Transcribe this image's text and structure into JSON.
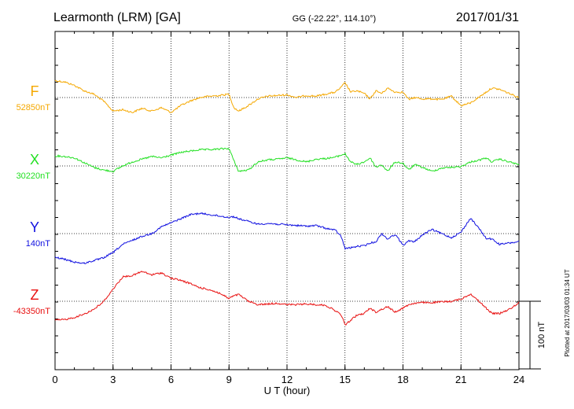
{
  "header": {
    "station": "Learmonth (LRM)  [GA]",
    "coords": "GG (-22.22°, 114.10°)",
    "date": "2017/01/31"
  },
  "footer_note": "Plotted at 2017/03/03 01:34  UT",
  "colors": {
    "F": "#f5a800",
    "X": "#22e022",
    "Y": "#1010e0",
    "Z": "#e81010"
  },
  "chart_data": {
    "type": "line",
    "title": "Learmonth (LRM)  [GA]",
    "xlabel": "U T (hour)",
    "xlim": [
      0,
      24
    ],
    "xticks": [
      "0",
      "3",
      "6",
      "9",
      "12",
      "15",
      "18",
      "21",
      "24"
    ],
    "grid": true,
    "scale_bar": {
      "label": "100 nT",
      "value": 100
    },
    "series": [
      {
        "name": "F",
        "baseline_label": "52850nT",
        "baseline_nT": 52850,
        "x": [
          0,
          0.5,
          1,
          1.5,
          2,
          2.5,
          3,
          3.5,
          4,
          4.5,
          5,
          5.5,
          6,
          6.5,
          7,
          7.5,
          8,
          8.5,
          9,
          9.25,
          9.5,
          10,
          10.5,
          11,
          11.5,
          12,
          12.5,
          13,
          13.5,
          14,
          14.5,
          14.8,
          15,
          15.3,
          15.6,
          16,
          16.3,
          16.6,
          16.9,
          17.2,
          17.6,
          18,
          18.3,
          18.6,
          19,
          19.5,
          20,
          20.5,
          21,
          21.5,
          22,
          22.3,
          22.6,
          23,
          23.5,
          24
        ],
        "y": [
          52875,
          52873,
          52868,
          52860,
          52855,
          52845,
          52830,
          52832,
          52828,
          52834,
          52830,
          52835,
          52828,
          52838,
          52845,
          52850,
          52852,
          52853,
          52855,
          52835,
          52830,
          52838,
          52848,
          52852,
          52853,
          52854,
          52850,
          52853,
          52852,
          52855,
          52858,
          52865,
          52872,
          52858,
          52860,
          52856,
          52848,
          52860,
          52856,
          52864,
          52858,
          52858,
          52847,
          52850,
          52848,
          52848,
          52847,
          52852,
          52838,
          52842,
          52852,
          52858,
          52864,
          52862,
          52856,
          52850
        ]
      },
      {
        "name": "X",
        "baseline_label": "30220nT",
        "baseline_nT": 30220,
        "x": [
          0,
          0.5,
          1,
          1.5,
          2,
          2.5,
          3,
          3.5,
          4,
          4.5,
          5,
          5.5,
          6,
          6.5,
          7,
          7.5,
          8,
          8.5,
          9,
          9.25,
          9.5,
          10,
          10.5,
          11,
          11.5,
          12,
          12.5,
          13,
          13.5,
          14,
          14.5,
          14.8,
          15,
          15.3,
          15.6,
          16,
          16.3,
          16.6,
          16.9,
          17.2,
          17.6,
          18,
          18.3,
          18.6,
          19,
          19.5,
          20,
          20.5,
          21,
          21.5,
          22,
          22.3,
          22.6,
          23,
          23.5,
          24
        ],
        "y": [
          30235,
          30234,
          30232,
          30225,
          30218,
          30214,
          30212,
          30220,
          30226,
          30230,
          30234,
          30232,
          30236,
          30240,
          30242,
          30244,
          30244,
          30245,
          30246,
          30228,
          30212,
          30214,
          30226,
          30229,
          30230,
          30232,
          30229,
          30226,
          30230,
          30231,
          30233,
          30236,
          30238,
          30226,
          30222,
          30226,
          30232,
          30218,
          30222,
          30212,
          30226,
          30224,
          30214,
          30222,
          30218,
          30212,
          30217,
          30218,
          30219,
          30226,
          30229,
          30232,
          30226,
          30230,
          30226,
          30222
        ]
      },
      {
        "name": "Y",
        "baseline_label": "140nT",
        "baseline_nT": 140,
        "x": [
          0,
          0.5,
          1,
          1.5,
          2,
          2.5,
          3,
          3.5,
          4,
          4.5,
          5,
          5.5,
          6,
          6.5,
          7,
          7.5,
          8,
          8.5,
          9,
          9.25,
          9.5,
          10,
          10.5,
          11,
          11.5,
          12,
          12.5,
          13,
          13.5,
          14,
          14.5,
          14.8,
          15,
          15.3,
          15.6,
          16,
          16.3,
          16.6,
          16.9,
          17.2,
          17.6,
          18,
          18.3,
          18.6,
          19,
          19.5,
          20,
          20.5,
          21,
          21.5,
          22,
          22.3,
          22.6,
          23,
          23.5,
          24
        ],
        "y": [
          105,
          102,
          98,
          96,
          100,
          104,
          112,
          124,
          130,
          136,
          140,
          150,
          156,
          162,
          168,
          170,
          168,
          166,
          164,
          165,
          162,
          158,
          154,
          155,
          154,
          153,
          152,
          151,
          152,
          148,
          145,
          136,
          118,
          119,
          121,
          122,
          126,
          128,
          140,
          132,
          139,
          123,
          129,
          128,
          138,
          146,
          140,
          134,
          142,
          163,
          145,
          133,
          132,
          124,
          126,
          128
        ]
      },
      {
        "name": "Z",
        "baseline_label": "-43350nT",
        "baseline_nT": -43350,
        "x": [
          0,
          0.5,
          1,
          1.5,
          2,
          2.5,
          3,
          3.5,
          4,
          4.5,
          5,
          5.5,
          6,
          6.5,
          7,
          7.5,
          8,
          8.5,
          9,
          9.25,
          9.5,
          10,
          10.5,
          11,
          11.5,
          12,
          12.5,
          13,
          13.5,
          14,
          14.5,
          14.8,
          15,
          15.3,
          15.6,
          16,
          16.3,
          16.6,
          16.9,
          17.2,
          17.6,
          18,
          18.3,
          18.6,
          19,
          19.5,
          20,
          20.5,
          21,
          21.5,
          22,
          22.3,
          22.6,
          23,
          23.5,
          24
        ],
        "y": [
          -43378,
          -43377,
          -43374,
          -43369,
          -43362,
          -43351,
          -43332,
          -43314,
          -43312,
          -43306,
          -43311,
          -43308,
          -43316,
          -43319,
          -43324,
          -43330,
          -43333,
          -43338,
          -43346,
          -43342,
          -43340,
          -43350,
          -43355,
          -43354,
          -43353,
          -43355,
          -43355,
          -43354,
          -43355,
          -43356,
          -43364,
          -43370,
          -43385,
          -43378,
          -43371,
          -43368,
          -43360,
          -43366,
          -43362,
          -43358,
          -43366,
          -43360,
          -43355,
          -43353,
          -43352,
          -43352,
          -43351,
          -43350,
          -43347,
          -43339,
          -43352,
          -43360,
          -43368,
          -43368,
          -43362,
          -43352
        ]
      }
    ]
  }
}
